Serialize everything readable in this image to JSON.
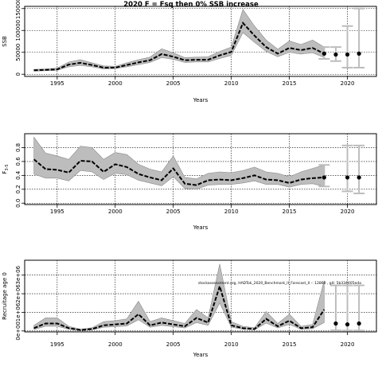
{
  "figure_title": "2020 F = Fsq then 0% SSB increase",
  "chart_data": [
    {
      "type": "line",
      "ylabel": "SSB",
      "xlabel": "Years",
      "xlim": [
        1992.2,
        2022.5
      ],
      "ylim": [
        -5000,
        155000
      ],
      "yticks": [
        0,
        50000,
        100000,
        150000
      ],
      "ytick_labels": [
        "0",
        "50000",
        "100000",
        "150000"
      ],
      "xticks": [
        1995,
        2000,
        2005,
        2010,
        2015,
        2020
      ],
      "grid": true,
      "years": [
        1993,
        1994,
        1995,
        1996,
        1997,
        1998,
        1999,
        2000,
        2001,
        2002,
        2003,
        2004,
        2005,
        2006,
        2007,
        2008,
        2009,
        2010,
        2011,
        2012,
        2013,
        2014,
        2015,
        2016,
        2017,
        2018
      ],
      "median": [
        9000,
        10000,
        11000,
        22000,
        26000,
        21000,
        15000,
        15000,
        21000,
        27000,
        32000,
        46000,
        40000,
        32000,
        33000,
        33000,
        43000,
        51000,
        117000,
        88000,
        62000,
        47000,
        60000,
        55000,
        60000,
        47000
      ],
      "lower": [
        7000,
        8000,
        9000,
        17000,
        20000,
        17000,
        12000,
        13000,
        17000,
        22000,
        27000,
        38000,
        34000,
        27000,
        28000,
        28000,
        36000,
        43000,
        95000,
        73000,
        52000,
        40000,
        50000,
        46000,
        49000,
        38000
      ],
      "upper": [
        11000,
        12000,
        14000,
        28000,
        33000,
        26000,
        19000,
        18000,
        26000,
        33000,
        39000,
        58000,
        49000,
        38000,
        39000,
        40000,
        52000,
        62000,
        148000,
        110000,
        78000,
        57000,
        76000,
        68000,
        78000,
        62000
      ],
      "projection": {
        "years": [
          2018,
          2019,
          2020,
          2021
        ],
        "points": [
          47000,
          45000,
          45000,
          47000
        ],
        "lower": [
          35000,
          30000,
          15000,
          15000
        ],
        "upper": [
          62000,
          62000,
          110000,
          150000
        ]
      }
    },
    {
      "type": "line",
      "ylabel": "F3-5",
      "ylabel_main": "F",
      "ylabel_sub": "3-5",
      "xlabel": "Years",
      "xlim": [
        1992.2,
        2022.5
      ],
      "ylim": [
        -0.02,
        1.0
      ],
      "yticks": [
        0.0,
        0.2,
        0.4,
        0.6,
        0.8
      ],
      "ytick_labels": [
        "0.0",
        "0.2",
        "0.4",
        "0.6",
        "0.8"
      ],
      "xticks": [
        1995,
        2000,
        2005,
        2010,
        2015,
        2020
      ],
      "grid": true,
      "years": [
        1993,
        1994,
        1995,
        1996,
        1997,
        1998,
        1999,
        2000,
        2001,
        2002,
        2003,
        2004,
        2005,
        2006,
        2007,
        2008,
        2009,
        2010,
        2011,
        2012,
        2013,
        2014,
        2015,
        2016,
        2017,
        2018
      ],
      "median": [
        0.63,
        0.49,
        0.48,
        0.44,
        0.61,
        0.6,
        0.45,
        0.56,
        0.52,
        0.42,
        0.37,
        0.33,
        0.5,
        0.28,
        0.26,
        0.33,
        0.34,
        0.33,
        0.36,
        0.4,
        0.34,
        0.33,
        0.29,
        0.34,
        0.36,
        0.37
      ],
      "lower": [
        0.42,
        0.36,
        0.36,
        0.32,
        0.47,
        0.45,
        0.34,
        0.43,
        0.41,
        0.33,
        0.29,
        0.25,
        0.38,
        0.21,
        0.2,
        0.26,
        0.27,
        0.27,
        0.29,
        0.32,
        0.27,
        0.27,
        0.23,
        0.27,
        0.28,
        0.24
      ],
      "upper": [
        0.95,
        0.72,
        0.68,
        0.63,
        0.82,
        0.8,
        0.63,
        0.73,
        0.7,
        0.56,
        0.49,
        0.45,
        0.68,
        0.37,
        0.35,
        0.43,
        0.45,
        0.44,
        0.47,
        0.52,
        0.45,
        0.43,
        0.38,
        0.45,
        0.5,
        0.55
      ],
      "projection": {
        "years": [
          2018,
          2020,
          2021
        ],
        "points": [
          0.37,
          0.37,
          0.37
        ],
        "lower": [
          0.24,
          0.17,
          0.14
        ],
        "upper": [
          0.55,
          0.83,
          0.83
        ]
      }
    },
    {
      "type": "line",
      "ylabel": "Recruitage age 0",
      "xlabel": "Years",
      "xlim": [
        1992.2,
        2022.5
      ],
      "ylim": [
        -50000,
        3800000
      ],
      "yticks": [
        0,
        1000000,
        2000000,
        3000000
      ],
      "ytick_labels": [
        "0e+00",
        "1e+06",
        "2e+06",
        "3e+06"
      ],
      "xticks": [
        1995,
        2000,
        2005,
        2010,
        2015,
        2020
      ],
      "grid": true,
      "annotation": "stockassessment.org, HADTok_2020_Benchmark_II_Forecast_II -: 12869 , git: 5b334405eda",
      "years": [
        1993,
        1994,
        1995,
        1996,
        1997,
        1998,
        1999,
        2000,
        2001,
        2002,
        2003,
        2004,
        2005,
        2006,
        2007,
        2008,
        2009,
        2010,
        2011,
        2012,
        2013,
        2014,
        2015,
        2016,
        2017,
        2018
      ],
      "median": [
        150000,
        400000,
        400000,
        150000,
        50000,
        100000,
        300000,
        350000,
        400000,
        900000,
        300000,
        450000,
        350000,
        250000,
        700000,
        450000,
        2400000,
        300000,
        150000,
        100000,
        650000,
        250000,
        550000,
        150000,
        200000,
        1150000
      ],
      "lower": [
        80000,
        250000,
        250000,
        90000,
        30000,
        60000,
        200000,
        230000,
        270000,
        600000,
        200000,
        300000,
        230000,
        160000,
        450000,
        300000,
        1500000,
        200000,
        90000,
        60000,
        420000,
        160000,
        350000,
        90000,
        120000,
        450000
      ],
      "upper": [
        300000,
        700000,
        700000,
        250000,
        90000,
        170000,
        500000,
        550000,
        650000,
        1600000,
        500000,
        700000,
        550000,
        400000,
        1150000,
        700000,
        3600000,
        500000,
        250000,
        170000,
        1050000,
        400000,
        900000,
        250000,
        350000,
        2700000
      ],
      "projection": {
        "years": [
          2019,
          2020,
          2021
        ],
        "points": [
          400000,
          350000,
          400000
        ],
        "lower": [
          30000,
          20000,
          20000
        ],
        "upper": [
          2450000,
          2450000,
          2450000
        ]
      }
    }
  ]
}
